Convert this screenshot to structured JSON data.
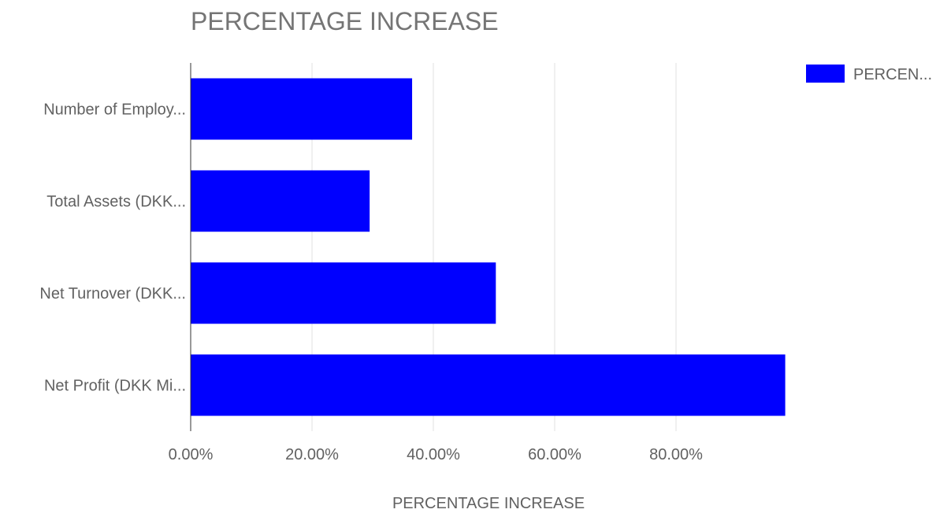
{
  "chart_data": {
    "type": "bar",
    "orientation": "horizontal",
    "title": "PERCENTAGE INCREASE",
    "xlabel": "PERCENTAGE INCREASE",
    "ylabel": "",
    "categories": [
      "Number of Employ...",
      "Total Assets (DKK...",
      "Net Turnover (DKK...",
      "Net Profit (DKK Mi..."
    ],
    "series": [
      {
        "name": "PERCEN...",
        "values": [
          36.5,
          29.5,
          50.3,
          98.0
        ],
        "color": "#0000ff"
      }
    ],
    "x_ticks": [
      "0.00%",
      "20.00%",
      "40.00%",
      "60.00%",
      "80.00%"
    ],
    "x_tick_values": [
      0,
      20,
      40,
      60,
      80
    ],
    "xlim": [
      0,
      100
    ],
    "grid": true,
    "legend_position": "top-right"
  }
}
